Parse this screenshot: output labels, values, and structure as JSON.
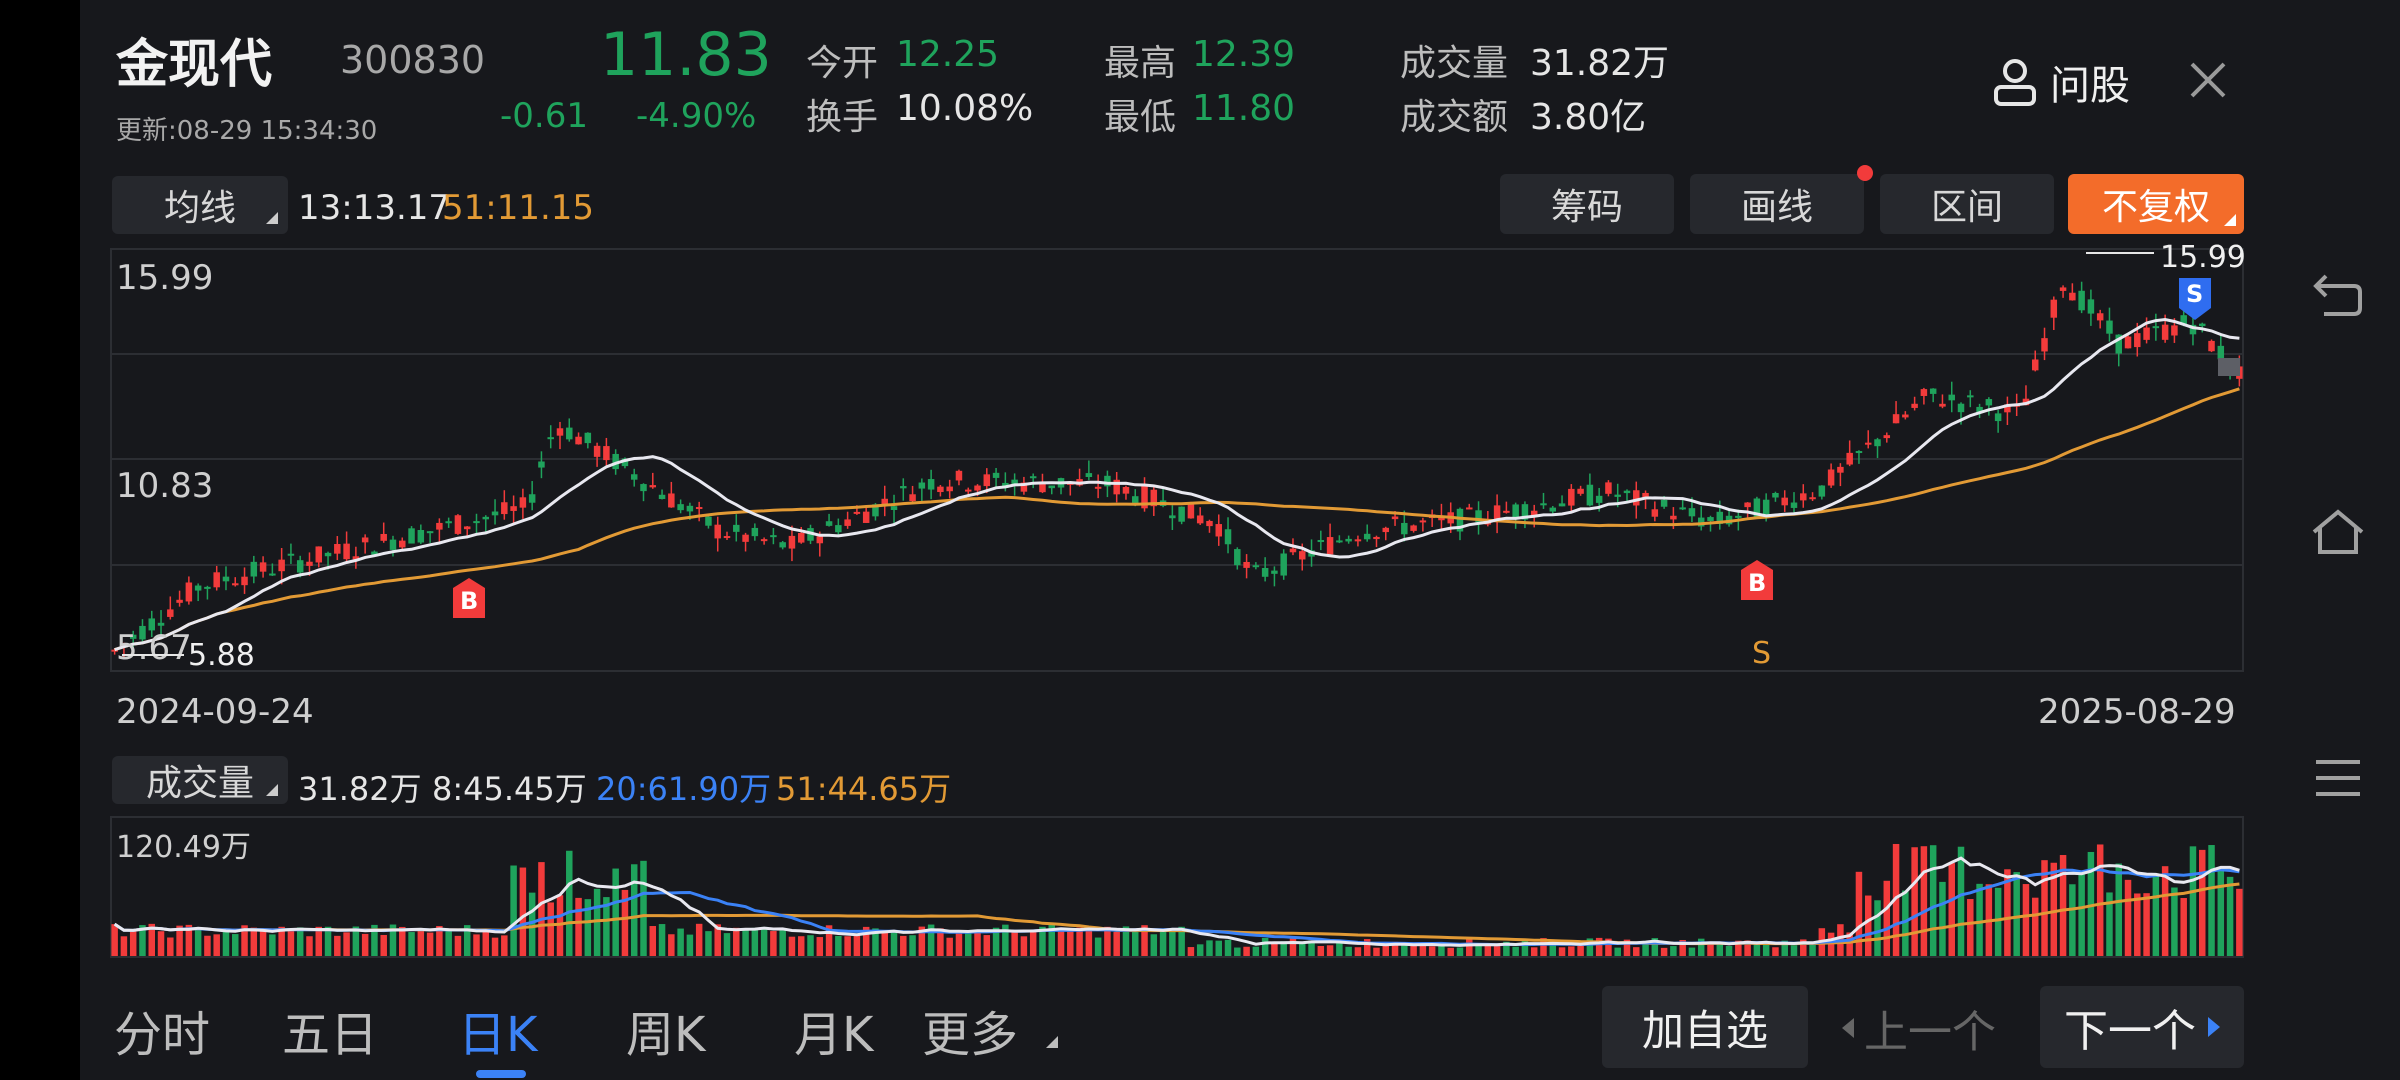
{
  "header": {
    "stock_name": "金现代",
    "stock_code": "300830",
    "price": "11.83",
    "change": "-0.61",
    "change_pct": "-4.90%",
    "update_time": "更新:08-29 15:34:30",
    "open_label": "今开",
    "open_value": "12.25",
    "turnover_label": "换手",
    "turnover_value": "10.08%",
    "high_label": "最高",
    "high_value": "12.39",
    "low_label": "最低",
    "low_value": "11.80",
    "volume_label": "成交量",
    "volume_value": "31.82万",
    "amount_label": "成交额",
    "amount_value": "3.80亿",
    "ask_label": "问股"
  },
  "toolbar": {
    "ma_selector": "均线",
    "ma13_value": "13:13.17",
    "ma51_value": "51:11.15",
    "chips_button": "筹码",
    "draw_button": "画线",
    "range_button": "区间",
    "adjust_button": "不复权"
  },
  "kline": {
    "y_top_label": "15.99",
    "y_mid_label": "10.83",
    "y_bottom_label": "5.67",
    "max_marker": "15.99",
    "min_marker": "5.88",
    "x_start_label": "2024-09-24",
    "x_end_label": "2025-08-29",
    "buy_marker_1": "B",
    "buy_marker_2": "B",
    "sell_marker": "S",
    "sell_letter": "S"
  },
  "volume_panel": {
    "selector": "成交量",
    "current": "31.82万",
    "ma8": "8:45.45万",
    "ma20": "20:61.90万",
    "ma51": "51:44.65万",
    "y_top_label": "120.49万"
  },
  "bottom_tabs": {
    "intraday": "分时",
    "five_day": "五日",
    "daily_k": "日K",
    "weekly_k": "周K",
    "monthly_k": "月K",
    "more": "更多",
    "add_watch": "加自选",
    "prev": "上一个",
    "next": "下一个"
  },
  "colors": {
    "up": "#f23b3b",
    "down": "#1fa35c",
    "ma13": "#e8e8f0",
    "ma51": "#e29a35",
    "ma20_vol": "#3b82f6",
    "accent": "#f36c2a"
  }
}
